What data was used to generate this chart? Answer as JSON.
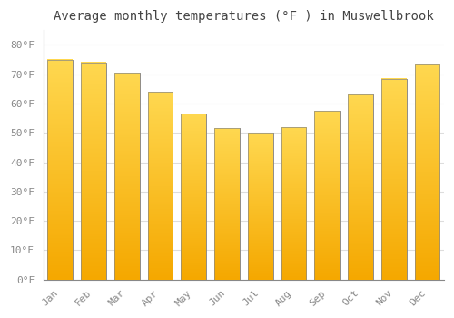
{
  "title": "Average monthly temperatures (°F ) in Muswellbrook",
  "months": [
    "Jan",
    "Feb",
    "Mar",
    "Apr",
    "May",
    "Jun",
    "Jul",
    "Aug",
    "Sep",
    "Oct",
    "Nov",
    "Dec"
  ],
  "values": [
    75,
    74,
    70.5,
    64,
    56.5,
    51.5,
    50,
    52,
    57.5,
    63,
    68.5,
    73.5
  ],
  "bar_color_top": "#FFC929",
  "bar_color_bottom": "#F5A800",
  "bar_edge_color": "#888888",
  "background_color": "#FFFFFF",
  "grid_color": "#DDDDDD",
  "title_fontsize": 10,
  "tick_fontsize": 8,
  "tick_color": "#888888",
  "title_color": "#444444",
  "ylim": [
    0,
    85
  ],
  "yticks": [
    0,
    10,
    20,
    30,
    40,
    50,
    60,
    70,
    80
  ],
  "ytick_labels": [
    "0°F",
    "10°F",
    "20°F",
    "30°F",
    "40°F",
    "50°F",
    "60°F",
    "70°F",
    "80°F"
  ],
  "bar_width": 0.75
}
